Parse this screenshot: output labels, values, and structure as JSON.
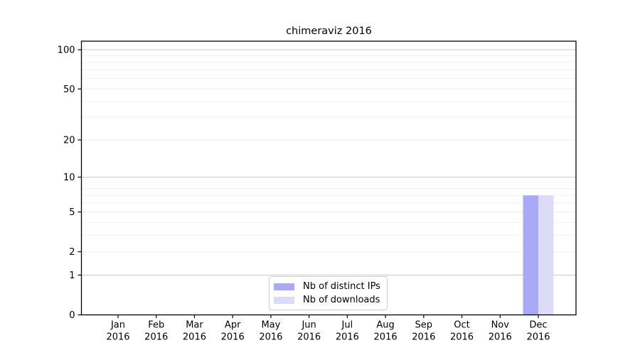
{
  "figure": {
    "title": "chimeraviz 2016",
    "background_color": "#ffffff"
  },
  "chart_data": {
    "type": "bar",
    "title": "chimeraviz 2016",
    "categories": [
      "Jan",
      "Feb",
      "Mar",
      "Apr",
      "May",
      "Jun",
      "Jul",
      "Aug",
      "Sep",
      "Oct",
      "Nov",
      "Dec"
    ],
    "category_year": "2016",
    "series": [
      {
        "name": "Nb of distinct IPs",
        "color": "#a9a9f5",
        "values": [
          0,
          0,
          0,
          0,
          0,
          0,
          0,
          0,
          0,
          0,
          0,
          7
        ]
      },
      {
        "name": "Nb of downloads",
        "color": "#dcdcf8",
        "values": [
          0,
          0,
          0,
          0,
          0,
          0,
          0,
          0,
          0,
          0,
          0,
          7
        ]
      }
    ],
    "xlabel": "",
    "ylabel": "",
    "y_scale": "log1p",
    "y_ticks": [
      0,
      1,
      2,
      5,
      10,
      20,
      50,
      100
    ],
    "ylim": [
      0,
      117
    ],
    "grid": {
      "on": true,
      "major_values": [
        1,
        10,
        100
      ],
      "minor_values": [
        2,
        3,
        4,
        5,
        6,
        7,
        8,
        9,
        20,
        30,
        40,
        50,
        60,
        70,
        80,
        90
      ],
      "major_color": "#c6c6c6",
      "minor_color": "#efefef"
    },
    "axis_color": "#000000",
    "text_color": "#000000",
    "legend": {
      "position": "lower center"
    }
  }
}
